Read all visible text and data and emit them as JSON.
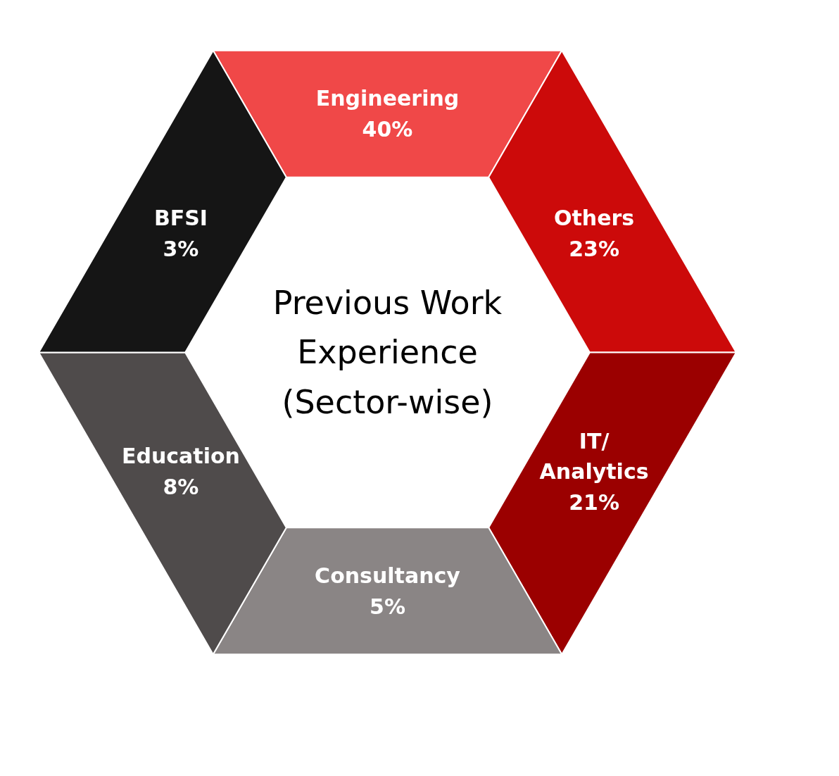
{
  "chart_data": {
    "type": "other",
    "title": "Previous Work Experience (Sector-wise)",
    "categories": [
      "Engineering",
      "Others",
      "IT/Analytics",
      "Consultancy",
      "Education",
      "BFSI"
    ],
    "values": [
      40,
      23,
      21,
      5,
      8,
      3
    ],
    "value_labels": [
      "40%",
      "23%",
      "21%",
      "5%",
      "8%",
      "3%"
    ],
    "colors": [
      "#f04848",
      "#cc0a0a",
      "#9b0000",
      "#8a8585",
      "#4f4b4b",
      "#151515"
    ]
  }
}
